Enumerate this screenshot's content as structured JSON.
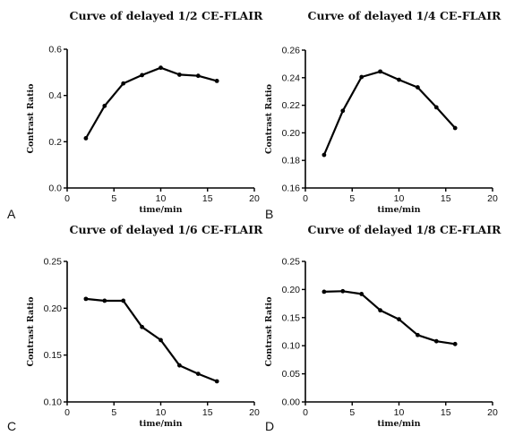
{
  "chart_data": [
    {
      "type": "line",
      "panel": "A",
      "title": "Curve of delayed 1/2 CE-FLAIR",
      "xlabel": "time/min",
      "ylabel": "Contrast Ratio",
      "xlim": [
        0,
        20
      ],
      "ylim": [
        0.0,
        0.6
      ],
      "xticks": [
        "0",
        "5",
        "10",
        "15",
        "20"
      ],
      "yticks": [
        "0.0",
        "0.2",
        "0.4",
        "0.6"
      ],
      "x": [
        2,
        4,
        6,
        8,
        10,
        12,
        14,
        16
      ],
      "y": [
        0.215,
        0.355,
        0.452,
        0.488,
        0.52,
        0.49,
        0.485,
        0.463
      ]
    },
    {
      "type": "line",
      "panel": "B",
      "title": "Curve of delayed 1/4 CE-FLAIR",
      "xlabel": "time/min",
      "ylabel": "Contrast Ratio",
      "xlim": [
        0,
        20
      ],
      "ylim": [
        0.16,
        0.26
      ],
      "xticks": [
        "0",
        "5",
        "10",
        "15",
        "20"
      ],
      "yticks": [
        "0.16",
        "0.18",
        "0.20",
        "0.22",
        "0.24",
        "0.26"
      ],
      "x": [
        2,
        4,
        6,
        8,
        10,
        12,
        14,
        16
      ],
      "y": [
        0.184,
        0.216,
        0.2405,
        0.2445,
        0.2385,
        0.233,
        0.2185,
        0.2035
      ]
    },
    {
      "type": "line",
      "panel": "C",
      "title": "Curve of delayed 1/6 CE-FLAIR",
      "xlabel": "time/min",
      "ylabel": "Contrast Ratio",
      "xlim": [
        0,
        20
      ],
      "ylim": [
        0.1,
        0.25
      ],
      "xticks": [
        "0",
        "5",
        "10",
        "15",
        "20"
      ],
      "yticks": [
        "0.10",
        "0.15",
        "0.20",
        "0.25"
      ],
      "x": [
        2,
        4,
        6,
        8,
        10,
        12,
        14,
        16
      ],
      "y": [
        0.21,
        0.208,
        0.208,
        0.18,
        0.166,
        0.139,
        0.13,
        0.122
      ]
    },
    {
      "type": "line",
      "panel": "D",
      "title": "Curve of delayed 1/8 CE-FLAIR",
      "xlabel": "time/min",
      "ylabel": "Contrast Ratio",
      "xlim": [
        0,
        20
      ],
      "ylim": [
        0.0,
        0.25
      ],
      "xticks": [
        "0",
        "5",
        "10",
        "15",
        "20"
      ],
      "yticks": [
        "0.00",
        "0.05",
        "0.10",
        "0.15",
        "0.20",
        "0.25"
      ],
      "x": [
        2,
        4,
        6,
        8,
        10,
        12,
        14,
        16
      ],
      "y": [
        0.196,
        0.197,
        0.192,
        0.163,
        0.147,
        0.119,
        0.108,
        0.103
      ]
    }
  ]
}
